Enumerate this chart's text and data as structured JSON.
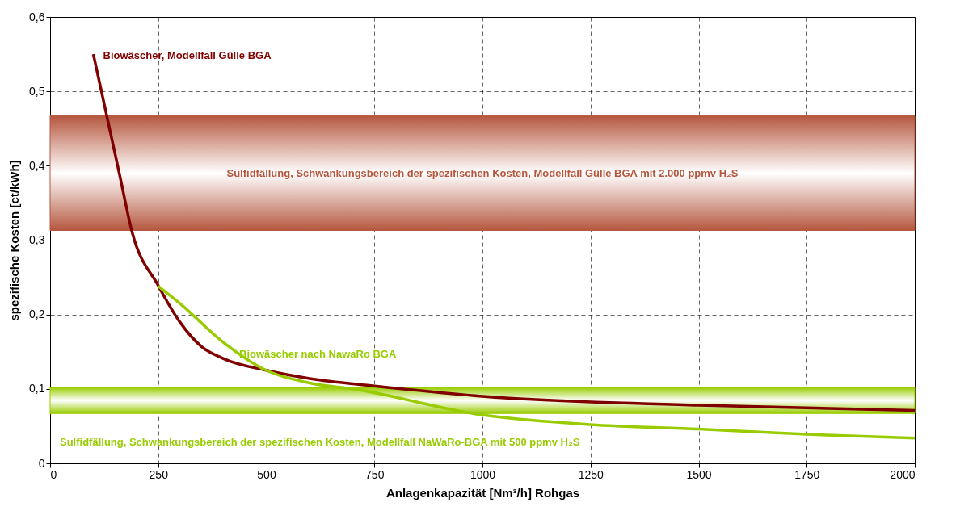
{
  "chart_data": {
    "type": "line",
    "xlabel": "Anlagenkapazität [Nm³/h] Rohgas",
    "ylabel": "spezifische Kosten [ct/kWh]",
    "xlim": [
      0,
      2000
    ],
    "xticks": [
      0,
      250,
      500,
      750,
      1000,
      1250,
      1500,
      1750,
      2000
    ],
    "ylim": [
      0,
      0.6
    ],
    "yticks": [
      0,
      {
        "value": 0.1,
        "label": "0,1"
      },
      {
        "value": 0.2,
        "label": "0,2"
      },
      {
        "value": 0.3,
        "label": "0,3"
      },
      {
        "value": 0.4,
        "label": "0,4"
      },
      {
        "value": 0.5,
        "label": "0,5"
      },
      {
        "value": 0.6,
        "label": "0,6"
      }
    ],
    "grid": true,
    "line_style": "solid",
    "marker": "none",
    "bands": [
      {
        "axis": "y",
        "from": 0.313,
        "to": 0.467,
        "label": "Sulfidfällung, Schwankungsbereich der spezifischen Kosten, Modellfall Gülle BGA mit 2.000 ppmv H₂S",
        "color": "#b5573e"
      },
      {
        "axis": "y",
        "from": 0.067,
        "to": 0.102,
        "label": "Sulfidfällung, Schwankungsbereich der spezifischen Kosten, Modellfall NaWaRo-BGA mit 500 ppmv H₂S",
        "color": "#99cc00"
      }
    ],
    "series": [
      {
        "name": "Biowäscher, Modellfall Gülle BGA",
        "color": "#800000",
        "x": [
          100,
          130,
          160,
          190,
          250,
          300,
          350,
          400,
          500,
          600,
          750,
          1000,
          1500,
          2000
        ],
        "values": [
          0.55,
          0.47,
          0.39,
          0.31,
          0.239,
          0.19,
          0.157,
          0.141,
          0.125,
          0.114,
          0.104,
          0.09,
          0.078,
          0.071
        ]
      },
      {
        "name": "Biowäscher nach NawaRo BGA",
        "color": "#99cc00",
        "x": [
          250,
          300,
          400,
          500,
          600,
          700,
          1000,
          1250,
          1500,
          1750,
          2000
        ],
        "values": [
          0.238,
          0.215,
          0.163,
          0.125,
          0.108,
          0.1,
          0.065,
          0.052,
          0.046,
          0.039,
          0.034
        ]
      }
    ]
  }
}
